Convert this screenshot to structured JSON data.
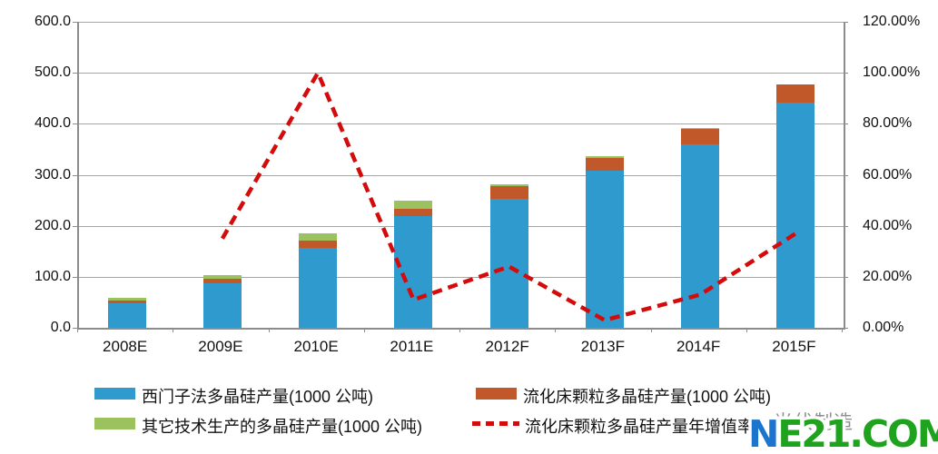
{
  "chart_data": {
    "type": "bar",
    "title": "",
    "categories": [
      "2008E",
      "2009E",
      "2010E",
      "2011E",
      "2012F",
      "2013F",
      "2014F",
      "2015F"
    ],
    "series": [
      {
        "name": "西门子法多晶硅产量(1000 公吨)",
        "type": "bar",
        "stacked": true,
        "axis": "left",
        "color": "#2f9ace",
        "values": [
          48,
          88,
          156,
          219,
          252,
          308,
          360,
          441
        ]
      },
      {
        "name": "流化床颗粒多晶硅产量(1000 公吨)",
        "type": "bar",
        "stacked": true,
        "axis": "left",
        "color": "#c1582a",
        "values": [
          6,
          9,
          15,
          15,
          26,
          25,
          30,
          37
        ]
      },
      {
        "name": "其它技术生产的多晶硅产量(1000 公吨)",
        "type": "bar",
        "stacked": true,
        "axis": "left",
        "color": "#9cc25f",
        "values": [
          5,
          7,
          14,
          15,
          3,
          4,
          2,
          0
        ]
      },
      {
        "name": "流化床颗粒多晶硅产量年增值率",
        "type": "line",
        "stacked": false,
        "axis": "right",
        "color": "#d40b0b",
        "dashed": true,
        "values": [
          null,
          35,
          100,
          11,
          24,
          3,
          13,
          37
        ]
      }
    ],
    "left_axis": {
      "min": 0,
      "max": 600,
      "step": 100,
      "tick_labels": [
        "0.0",
        "100.0",
        "200.0",
        "300.0",
        "400.0",
        "500.0",
        "600.0"
      ]
    },
    "right_axis": {
      "min": 0,
      "max": 120,
      "step": 20,
      "tick_labels": [
        "0.00%",
        "20.00%",
        "40.00%",
        "60.00%",
        "80.00%",
        "100.00%",
        "120.00%"
      ]
    },
    "grid": true,
    "legend_position": "bottom"
  },
  "watermark": {
    "gray_text": "光伏制造",
    "logo_first": "N",
    "logo_rest": "E21.COM",
    "logo_full": "NE21.COM",
    "logo_first_color": "#1b74cd",
    "logo_rest_color": "#1fa31f"
  }
}
